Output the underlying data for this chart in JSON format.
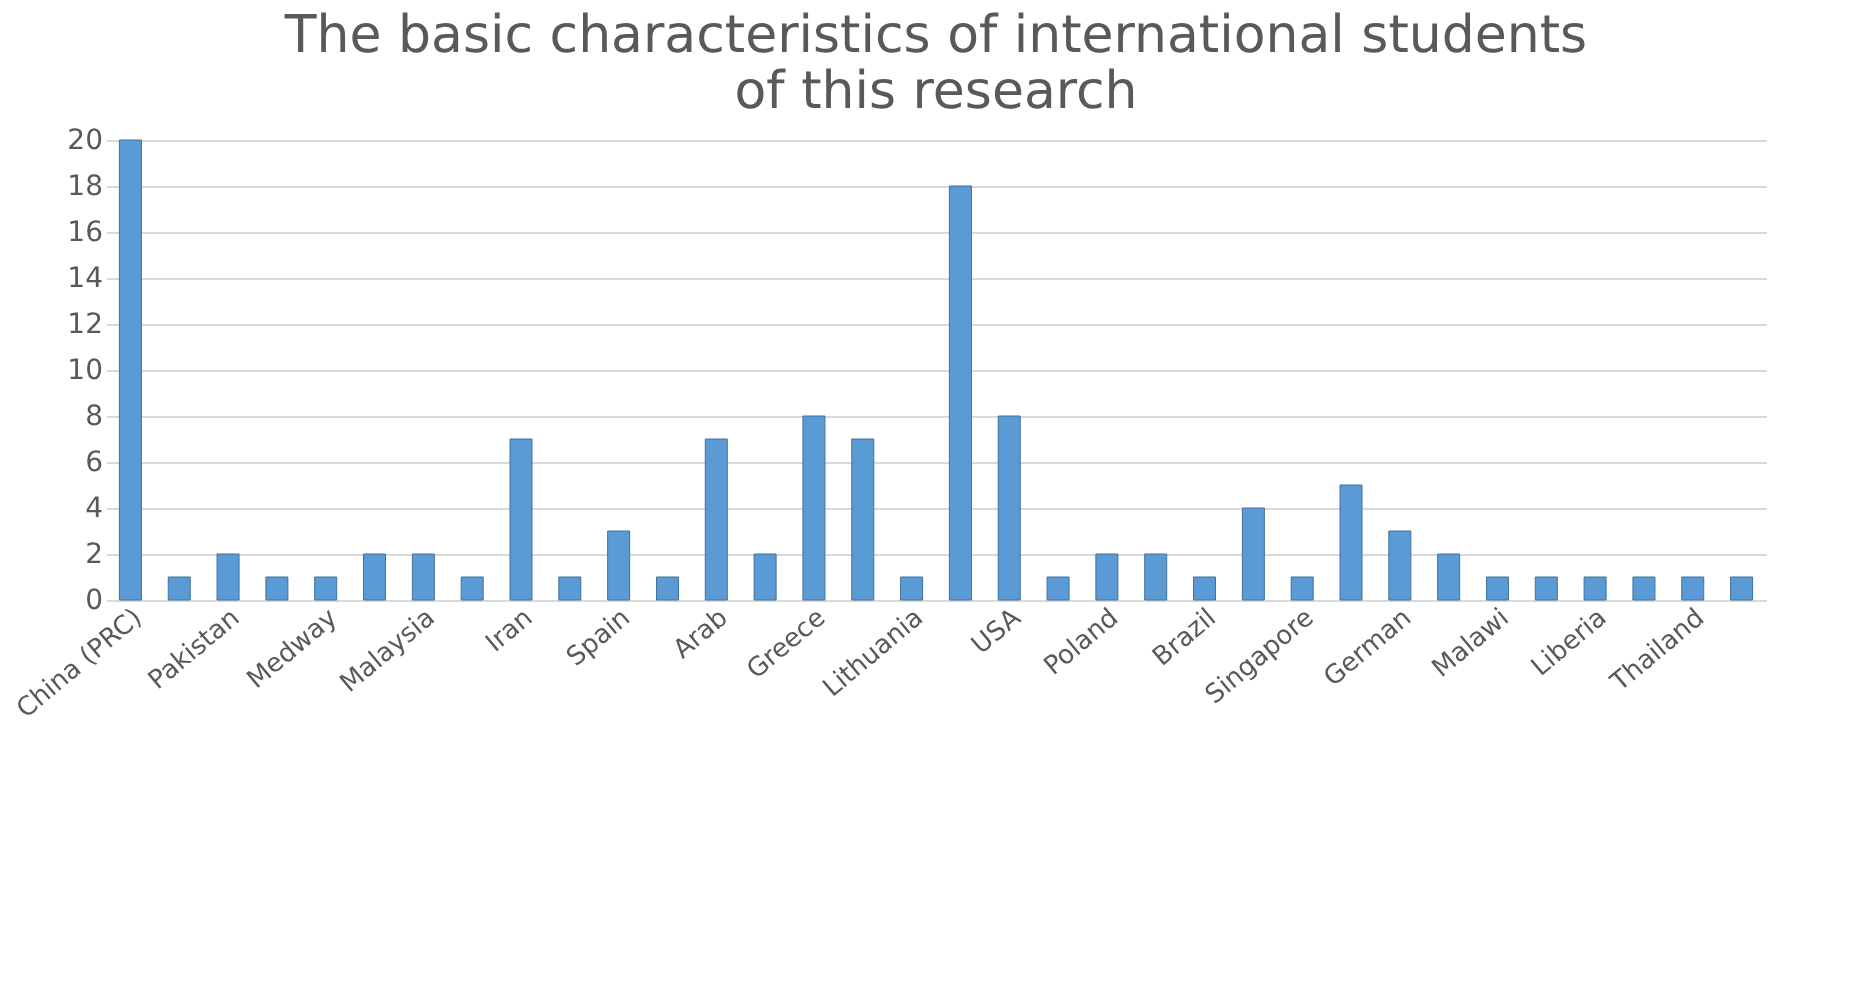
{
  "chart_data": {
    "type": "bar",
    "title": "The basic characteristics of international students of this research",
    "categories": [
      "China (PRC)",
      null,
      "Pakistan",
      null,
      "Medway",
      null,
      "Malaysia",
      null,
      "Iran",
      null,
      "Spain",
      null,
      "Arab",
      null,
      "Greece",
      null,
      "Lithuania",
      null,
      "USA",
      null,
      "Poland",
      null,
      "Brazil",
      null,
      "Singapore",
      null,
      "German",
      null,
      "Malawi",
      null,
      "Liberia",
      null,
      "Thailand",
      null
    ],
    "values": [
      20,
      1,
      2,
      1,
      1,
      2,
      2,
      1,
      7,
      1,
      3,
      1,
      7,
      2,
      8,
      7,
      1,
      18,
      8,
      1,
      2,
      2,
      1,
      4,
      1,
      5,
      3,
      2,
      1,
      1,
      1,
      1,
      1,
      1
    ],
    "color": "#5b9bd5",
    "ylim": [
      0,
      20
    ],
    "yticks": [
      0,
      2,
      4,
      6,
      8,
      10,
      12,
      14,
      16,
      18,
      20
    ],
    "grid": "y"
  }
}
